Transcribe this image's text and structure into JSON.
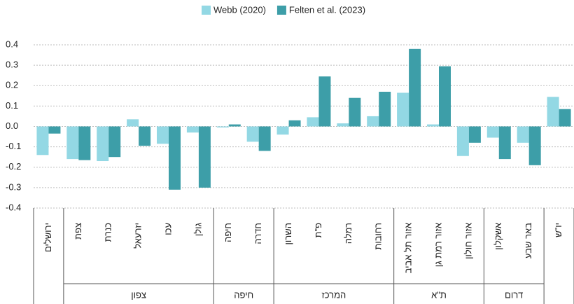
{
  "chart_data": {
    "type": "bar",
    "categories": [
      "ירושלים",
      "צפת",
      "כנרת",
      "יזרעאל",
      "עכו",
      "גולן",
      "חיפה",
      "חדרה",
      "השרון",
      "פ\"ת",
      "רמלה",
      "רחובות",
      "אזור תל אביב",
      "אזור רמת גן",
      "אזור חולון",
      "אשקלון",
      "באר שבע",
      "יו\"ש"
    ],
    "groups": [
      {
        "count": 1
      },
      {
        "label": "צפון",
        "count": 5
      },
      {
        "label": "חיפה",
        "count": 2
      },
      {
        "label": "המרכז",
        "count": 4
      },
      {
        "label": "ת\"א",
        "count": 3
      },
      {
        "label": "דרום",
        "count": 2
      },
      {
        "count": 1
      }
    ],
    "series": [
      {
        "name": "Webb (2020)",
        "color": "#93d8e4",
        "values": [
          -0.14,
          -0.16,
          -0.17,
          0.035,
          -0.085,
          -0.03,
          -0.005,
          -0.075,
          -0.04,
          0.045,
          0.015,
          0.05,
          0.165,
          0.01,
          -0.145,
          -0.055,
          -0.08,
          0.145
        ]
      },
      {
        "name": "Felten et al. (2023)",
        "color": "#3d9ea8",
        "values": [
          -0.035,
          -0.165,
          -0.15,
          -0.095,
          -0.31,
          -0.3,
          0.01,
          -0.12,
          0.03,
          0.245,
          0.14,
          0.17,
          0.38,
          0.295,
          -0.08,
          -0.16,
          -0.19,
          0.085
        ]
      }
    ],
    "ylim": [
      -0.4,
      0.4
    ],
    "yticks": [
      0.4,
      0.3,
      0.2,
      0.1,
      {
        "value": 0,
        "label": "0.0"
      },
      -0.1,
      -0.2,
      -0.3,
      -0.4
    ],
    "grid": true
  }
}
